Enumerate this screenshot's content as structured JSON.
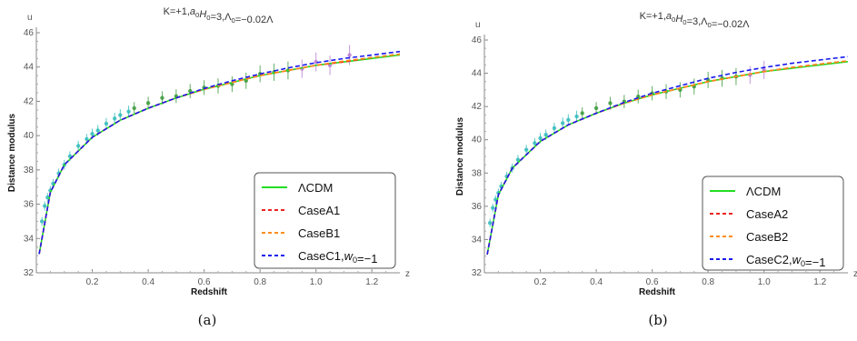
{
  "chart_data": [
    {
      "type": "line",
      "title": "K=+1,a0H0=3,Λ0=−0.02Λ",
      "xlabel": "Redshift",
      "ylabel": "Distance modulus",
      "x_axis_letter": "z",
      "y_axis_letter": "u",
      "xlim": [
        0.0,
        1.3
      ],
      "ylim": [
        32,
        46
      ],
      "x_ticks": [
        "0.2",
        "0.4",
        "0.6",
        "0.8",
        "1.0",
        "1.2"
      ],
      "y_ticks": [
        "32",
        "34",
        "36",
        "38",
        "40",
        "42",
        "44",
        "46"
      ],
      "caption": "(a)",
      "legend_position": "bottom-right",
      "series": [
        {
          "name": "ΛCDM",
          "color": "#22dd22",
          "style": "solid",
          "x": [
            0.01,
            0.05,
            0.1,
            0.2,
            0.3,
            0.4,
            0.5,
            0.6,
            0.7,
            0.8,
            0.9,
            1.0,
            1.1,
            1.2,
            1.3
          ],
          "y": [
            33.1,
            36.7,
            38.3,
            39.9,
            40.9,
            41.6,
            42.2,
            42.7,
            43.1,
            43.5,
            43.8,
            44.1,
            44.3,
            44.5,
            44.7
          ]
        },
        {
          "name": "CaseA1",
          "color": "#ee2222",
          "style": "dashed",
          "x": [
            0.01,
            0.05,
            0.1,
            0.2,
            0.3,
            0.4,
            0.5,
            0.6,
            0.7,
            0.8,
            0.9,
            1.0,
            1.1,
            1.2,
            1.3
          ],
          "y": [
            33.1,
            36.7,
            38.3,
            39.9,
            40.9,
            41.6,
            42.2,
            42.7,
            43.1,
            43.5,
            43.8,
            44.1,
            44.3,
            44.55,
            44.75
          ]
        },
        {
          "name": "CaseB1",
          "color": "#ff8c1a",
          "style": "dashed",
          "x": [
            0.01,
            0.05,
            0.1,
            0.2,
            0.3,
            0.4,
            0.5,
            0.6,
            0.7,
            0.8,
            0.9,
            1.0,
            1.1,
            1.2,
            1.3
          ],
          "y": [
            33.1,
            36.7,
            38.3,
            39.9,
            40.9,
            41.6,
            42.2,
            42.7,
            43.1,
            43.5,
            43.8,
            44.1,
            44.35,
            44.55,
            44.75
          ]
        },
        {
          "name": "CaseC1,w0=−1",
          "color": "#1a1aee",
          "style": "dashed",
          "x": [
            0.01,
            0.05,
            0.1,
            0.2,
            0.3,
            0.4,
            0.5,
            0.6,
            0.7,
            0.8,
            0.9,
            1.0,
            1.1,
            1.2,
            1.3
          ],
          "y": [
            33.1,
            36.7,
            38.3,
            39.9,
            40.9,
            41.6,
            42.2,
            42.75,
            43.2,
            43.6,
            43.95,
            44.25,
            44.5,
            44.7,
            44.9
          ]
        }
      ],
      "data_points": {
        "x": [
          0.02,
          0.03,
          0.04,
          0.05,
          0.06,
          0.08,
          0.1,
          0.12,
          0.15,
          0.18,
          0.2,
          0.22,
          0.25,
          0.28,
          0.3,
          0.33,
          0.35,
          0.4,
          0.45,
          0.5,
          0.55,
          0.6,
          0.65,
          0.7,
          0.75,
          0.8,
          0.85,
          0.9,
          0.95,
          1.0,
          1.05,
          1.12
        ],
        "y": [
          35.0,
          35.9,
          36.4,
          36.8,
          37.2,
          37.8,
          38.3,
          38.8,
          39.4,
          39.8,
          40.1,
          40.3,
          40.7,
          41.0,
          41.2,
          41.4,
          41.6,
          41.9,
          42.2,
          42.3,
          42.6,
          42.8,
          42.9,
          43.0,
          43.2,
          43.6,
          43.7,
          43.8,
          43.9,
          44.3,
          44.1,
          44.7
        ]
      }
    },
    {
      "type": "line",
      "title": "K=+1,a0H0=3,Λ0=−0.02Λ",
      "xlabel": "Redshift",
      "ylabel": "Distance modulus",
      "x_axis_letter": "z",
      "y_axis_letter": "u",
      "xlim": [
        0.0,
        1.3
      ],
      "ylim": [
        32,
        46
      ],
      "x_ticks": [
        "0.2",
        "0.4",
        "0.6",
        "0.8",
        "1.0",
        "1.2"
      ],
      "y_ticks": [
        "32",
        "34",
        "36",
        "38",
        "40",
        "42",
        "44",
        "46"
      ],
      "caption": "(b)",
      "legend_position": "bottom-right",
      "series": [
        {
          "name": "ΛCDM",
          "color": "#22dd22",
          "style": "solid",
          "x": [
            0.01,
            0.05,
            0.1,
            0.2,
            0.3,
            0.4,
            0.5,
            0.6,
            0.7,
            0.8,
            0.9,
            1.0,
            1.1,
            1.2,
            1.3
          ],
          "y": [
            33.1,
            36.7,
            38.3,
            39.9,
            40.9,
            41.6,
            42.2,
            42.7,
            43.1,
            43.5,
            43.8,
            44.1,
            44.3,
            44.5,
            44.7
          ]
        },
        {
          "name": "CaseA2",
          "color": "#ee2222",
          "style": "dashed",
          "x": [
            0.01,
            0.05,
            0.1,
            0.2,
            0.3,
            0.4,
            0.5,
            0.6,
            0.7,
            0.8,
            0.9,
            1.0,
            1.1,
            1.2,
            1.3
          ],
          "y": [
            33.1,
            36.7,
            38.3,
            39.9,
            40.9,
            41.6,
            42.2,
            42.7,
            43.1,
            43.5,
            43.8,
            44.1,
            44.35,
            44.55,
            44.75
          ]
        },
        {
          "name": "CaseB2",
          "color": "#ff8c1a",
          "style": "dashed",
          "x": [
            0.01,
            0.05,
            0.1,
            0.2,
            0.3,
            0.4,
            0.5,
            0.6,
            0.7,
            0.8,
            0.9,
            1.0,
            1.1,
            1.2,
            1.3
          ],
          "y": [
            33.1,
            36.7,
            38.3,
            39.9,
            40.9,
            41.6,
            42.2,
            42.7,
            43.1,
            43.5,
            43.8,
            44.1,
            44.35,
            44.55,
            44.75
          ]
        },
        {
          "name": "CaseC2,w0=−1",
          "color": "#1a1aee",
          "style": "dashed",
          "x": [
            0.01,
            0.05,
            0.1,
            0.2,
            0.3,
            0.4,
            0.5,
            0.6,
            0.7,
            0.8,
            0.9,
            1.0,
            1.1,
            1.2,
            1.3
          ],
          "y": [
            33.1,
            36.7,
            38.3,
            39.9,
            40.9,
            41.6,
            42.25,
            42.8,
            43.25,
            43.7,
            44.05,
            44.35,
            44.6,
            44.8,
            45.0
          ]
        }
      ],
      "data_points": {
        "x": [
          0.02,
          0.03,
          0.04,
          0.05,
          0.06,
          0.08,
          0.1,
          0.12,
          0.15,
          0.18,
          0.2,
          0.22,
          0.25,
          0.28,
          0.3,
          0.33,
          0.35,
          0.4,
          0.45,
          0.5,
          0.55,
          0.6,
          0.65,
          0.7,
          0.75,
          0.8,
          0.85,
          0.9,
          0.95,
          1.0
        ],
        "y": [
          35.0,
          35.9,
          36.4,
          36.8,
          37.2,
          37.8,
          38.3,
          38.8,
          39.4,
          39.8,
          40.1,
          40.3,
          40.7,
          41.0,
          41.2,
          41.4,
          41.6,
          41.9,
          42.2,
          42.3,
          42.6,
          42.8,
          42.9,
          43.0,
          43.2,
          43.6,
          43.7,
          43.8,
          43.9,
          44.2
        ]
      }
    }
  ]
}
